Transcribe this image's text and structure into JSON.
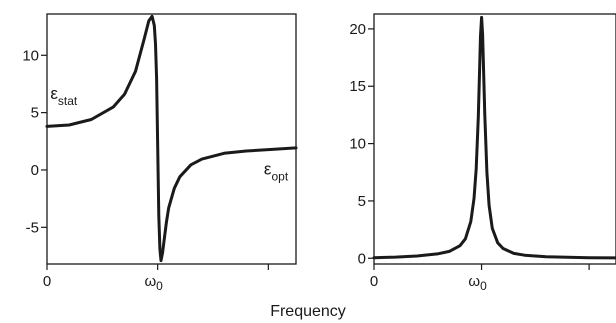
{
  "chart_data": [
    {
      "type": "line",
      "title": "",
      "ylabel": "",
      "xlim": [
        0,
        2.25
      ],
      "ylim": [
        -8.2,
        13.6
      ],
      "yticks": [
        -5,
        0,
        5,
        10
      ],
      "xticks": [
        {
          "value": 0,
          "label": "0"
        },
        {
          "value": 1,
          "label": "ω",
          "sub": "0"
        },
        {
          "value": 2,
          "label": ""
        }
      ],
      "series": [
        {
          "x": [
            0,
            0.2,
            0.4,
            0.6,
            0.7,
            0.8,
            0.88,
            0.92,
            0.95,
            0.97,
            0.98,
            0.99,
            1.0,
            1.01,
            1.02,
            1.03,
            1.045,
            1.06,
            1.08,
            1.1,
            1.15,
            1.2,
            1.3,
            1.4,
            1.6,
            1.8,
            2.0,
            2.25
          ],
          "y": [
            3.8,
            3.92,
            4.4,
            5.5,
            6.6,
            8.6,
            11.5,
            13.0,
            13.4,
            12.6,
            11.0,
            8.0,
            2.0,
            -4.0,
            -6.9,
            -7.9,
            -7.2,
            -6.0,
            -4.5,
            -3.3,
            -1.6,
            -0.6,
            0.45,
            0.95,
            1.45,
            1.65,
            1.78,
            1.92
          ]
        }
      ],
      "annotations": [
        {
          "text": "ε",
          "sub": "stat",
          "x": 0.03,
          "y": 6.2
        },
        {
          "text": "ε",
          "sub": "opt",
          "x": 1.96,
          "y": -0.4
        }
      ]
    },
    {
      "type": "line",
      "title": "",
      "ylabel": "",
      "xlim": [
        0,
        2.25
      ],
      "ylim": [
        -0.5,
        21.3
      ],
      "yticks": [
        0,
        5,
        10,
        15,
        20
      ],
      "xticks": [
        {
          "value": 0,
          "label": "0"
        },
        {
          "value": 1,
          "label": "ω",
          "sub": "0"
        },
        {
          "value": 2,
          "label": ""
        }
      ],
      "series": [
        {
          "x": [
            0,
            0.2,
            0.4,
            0.6,
            0.7,
            0.8,
            0.85,
            0.9,
            0.93,
            0.95,
            0.97,
            0.98,
            0.99,
            1.0,
            1.01,
            1.02,
            1.03,
            1.05,
            1.07,
            1.1,
            1.15,
            1.2,
            1.3,
            1.4,
            1.6,
            1.8,
            2.0,
            2.25
          ],
          "y": [
            0.05,
            0.1,
            0.2,
            0.4,
            0.6,
            1.1,
            1.7,
            3.2,
            5.2,
            7.8,
            12.3,
            15.8,
            19.4,
            21.0,
            19.5,
            16.0,
            12.5,
            7.5,
            4.6,
            2.6,
            1.35,
            0.85,
            0.42,
            0.27,
            0.13,
            0.08,
            0.05,
            0.03
          ]
        }
      ]
    }
  ],
  "xaxis_title": "Frequency"
}
